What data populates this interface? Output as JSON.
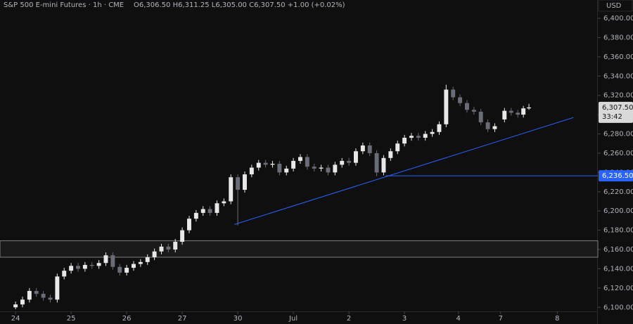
{
  "chart_data": {
    "type": "candlestick",
    "title": "S&P 500 E-mini Futures · 1h · CME",
    "ohlc_text": "O6,306.50 H6,311.25 L6,305.00 C6,307.50 +1.00 (+0.02%)",
    "currency": "USD",
    "up_color": "#e8e8e8",
    "down_color": "#6a6d78",
    "x": [
      0,
      0.125,
      0.25,
      0.375,
      0.5,
      0.625,
      0.75,
      0.875,
      1,
      1.125,
      1.25,
      1.375,
      1.5,
      1.625,
      1.75,
      1.875,
      2,
      2.125,
      2.25,
      2.375,
      2.5,
      2.625,
      2.75,
      2.875,
      3,
      3.125,
      3.25,
      3.375,
      3.5,
      3.625,
      3.75,
      3.875,
      4,
      4.125,
      4.25,
      4.375,
      4.5,
      4.625,
      4.75,
      4.875,
      5,
      5.125,
      5.25,
      5.375,
      5.5,
      5.625,
      5.75,
      5.875,
      6,
      6.125,
      6.25,
      6.375,
      6.5,
      6.625,
      6.75,
      6.875,
      7,
      7.125,
      7.25,
      7.375,
      7.5,
      7.625,
      7.75,
      7.875,
      8,
      8.125,
      8.25,
      8.375,
      8.5,
      8.625,
      8.8,
      8.92,
      9.04,
      9.14,
      9.24
    ],
    "open": [
      6100,
      6103,
      6108,
      6117,
      6114,
      6110,
      6108,
      6132,
      6138,
      6143,
      6140,
      6144,
      6143,
      6146,
      6154,
      6142,
      6136,
      6141,
      6145,
      6147,
      6152,
      6158,
      6163,
      6160,
      6168,
      6180,
      6192,
      6198,
      6202,
      6198,
      6208,
      6210,
      6235,
      6222,
      6238,
      6245,
      6250,
      6248,
      6249,
      6240,
      6244,
      6252,
      6256,
      6246,
      6244,
      6245,
      6240,
      6248,
      6252,
      6250,
      6262,
      6268,
      6260,
      6240,
      6255,
      6262,
      6270,
      6276,
      6278,
      6276,
      6280,
      6282,
      6290,
      6326,
      6318,
      6312,
      6305,
      6303,
      6292,
      6285,
      6295,
      6304,
      6302,
      6300,
      6306.5
    ],
    "high": [
      6106,
      6111,
      6120,
      6120,
      6117,
      6113,
      6135,
      6141,
      6146,
      6146,
      6147,
      6147,
      6149,
      6157,
      6157,
      6145,
      6144,
      6148,
      6150,
      6155,
      6161,
      6166,
      6166,
      6171,
      6183,
      6195,
      6201,
      6205,
      6205,
      6211,
      6213,
      6238,
      6238,
      6241,
      6248,
      6253,
      6253,
      6252,
      6252,
      6247,
      6255,
      6259,
      6259,
      6249,
      6248,
      6248,
      6251,
      6255,
      6255,
      6265,
      6271,
      6271,
      6263,
      6258,
      6265,
      6273,
      6279,
      6281,
      6281,
      6283,
      6285,
      6293,
      6331,
      6329,
      6321,
      6315,
      6308,
      6306,
      6295,
      6291,
      6307,
      6307,
      6305,
      6309,
      6311.25
    ],
    "low": [
      6098,
      6100,
      6105,
      6111,
      6107,
      6105,
      6105,
      6129,
      6135,
      6137,
      6137,
      6140,
      6140,
      6143,
      6139,
      6133,
      6133,
      6138,
      6142,
      6144,
      6149,
      6155,
      6157,
      6157,
      6165,
      6177,
      6189,
      6195,
      6195,
      6195,
      6205,
      6207,
      6185,
      6219,
      6235,
      6242,
      6245,
      6245,
      6237,
      6237,
      6241,
      6249,
      6243,
      6241,
      6241,
      6237,
      6237,
      6245,
      6247,
      6247,
      6259,
      6257,
      6236,
      6237,
      6252,
      6259,
      6267,
      6273,
      6273,
      6273,
      6277,
      6279,
      6287,
      6315,
      6309,
      6302,
      6300,
      6289,
      6282,
      6282,
      6292,
      6299,
      6297,
      6297,
      6305
    ],
    "close": [
      6103,
      6108,
      6117,
      6114,
      6110,
      6108,
      6132,
      6138,
      6143,
      6140,
      6144,
      6143,
      6146,
      6154,
      6142,
      6136,
      6141,
      6145,
      6147,
      6152,
      6158,
      6163,
      6160,
      6168,
      6180,
      6192,
      6198,
      6202,
      6198,
      6208,
      6210,
      6235,
      6222,
      6238,
      6245,
      6250,
      6248,
      6249,
      6240,
      6244,
      6252,
      6256,
      6246,
      6244,
      6245,
      6240,
      6248,
      6252,
      6250,
      6262,
      6268,
      6260,
      6240,
      6255,
      6262,
      6270,
      6276,
      6278,
      6276,
      6280,
      6282,
      6290,
      6326,
      6318,
      6312,
      6305,
      6303,
      6292,
      6285,
      6288,
      6304,
      6302,
      6300,
      6306.5,
      6307.5
    ],
    "xlim": [
      -0.28,
      10.48
    ],
    "ylim": [
      6098,
      6419
    ],
    "xticks": [
      {
        "value": 0,
        "label": "24"
      },
      {
        "value": 1,
        "label": "25"
      },
      {
        "value": 2,
        "label": "26"
      },
      {
        "value": 3,
        "label": "27"
      },
      {
        "value": 4,
        "label": "30"
      },
      {
        "value": 5,
        "label": "Jul"
      },
      {
        "value": 6,
        "label": "2"
      },
      {
        "value": 7,
        "label": "3"
      },
      {
        "value": 7.97,
        "label": "4"
      },
      {
        "value": 8.73,
        "label": "7"
      },
      {
        "value": 9.75,
        "label": "8"
      }
    ],
    "yticks": [
      {
        "value": 6100,
        "label": "6,100.00"
      },
      {
        "value": 6120,
        "label": "6,120.00"
      },
      {
        "value": 6140,
        "label": "6,140.00"
      },
      {
        "value": 6160,
        "label": "6,160.00"
      },
      {
        "value": 6180,
        "label": "6,180.00"
      },
      {
        "value": 6200,
        "label": "6,200.00"
      },
      {
        "value": 6220,
        "label": "6,220.00"
      },
      {
        "value": 6240,
        "label": "6,240.00"
      },
      {
        "value": 6260,
        "label": "6,260.00"
      },
      {
        "value": 6280,
        "label": "6,280.00"
      },
      {
        "value": 6300,
        "label": "6,300.00"
      },
      {
        "value": 6320,
        "label": "6,320.00"
      },
      {
        "value": 6340,
        "label": "6,340.00"
      },
      {
        "value": 6360,
        "label": "6,360.00"
      },
      {
        "value": 6380,
        "label": "6,380.00"
      },
      {
        "value": 6400,
        "label": "6,400.00"
      }
    ],
    "zone": {
      "y": [
        6152,
        6169
      ],
      "color": "#9a9a9a"
    },
    "trendline": {
      "x": [
        3.94,
        10.04
      ],
      "y": [
        6186,
        6297
      ],
      "color": "#2962ff"
    },
    "level": {
      "x": 6.66,
      "value": 6236.5,
      "label": "6,236.50",
      "color": "#2962ff"
    },
    "last_price": {
      "value": 6307.5,
      "label": "6,307.50",
      "countdown": "33:42"
    }
  }
}
